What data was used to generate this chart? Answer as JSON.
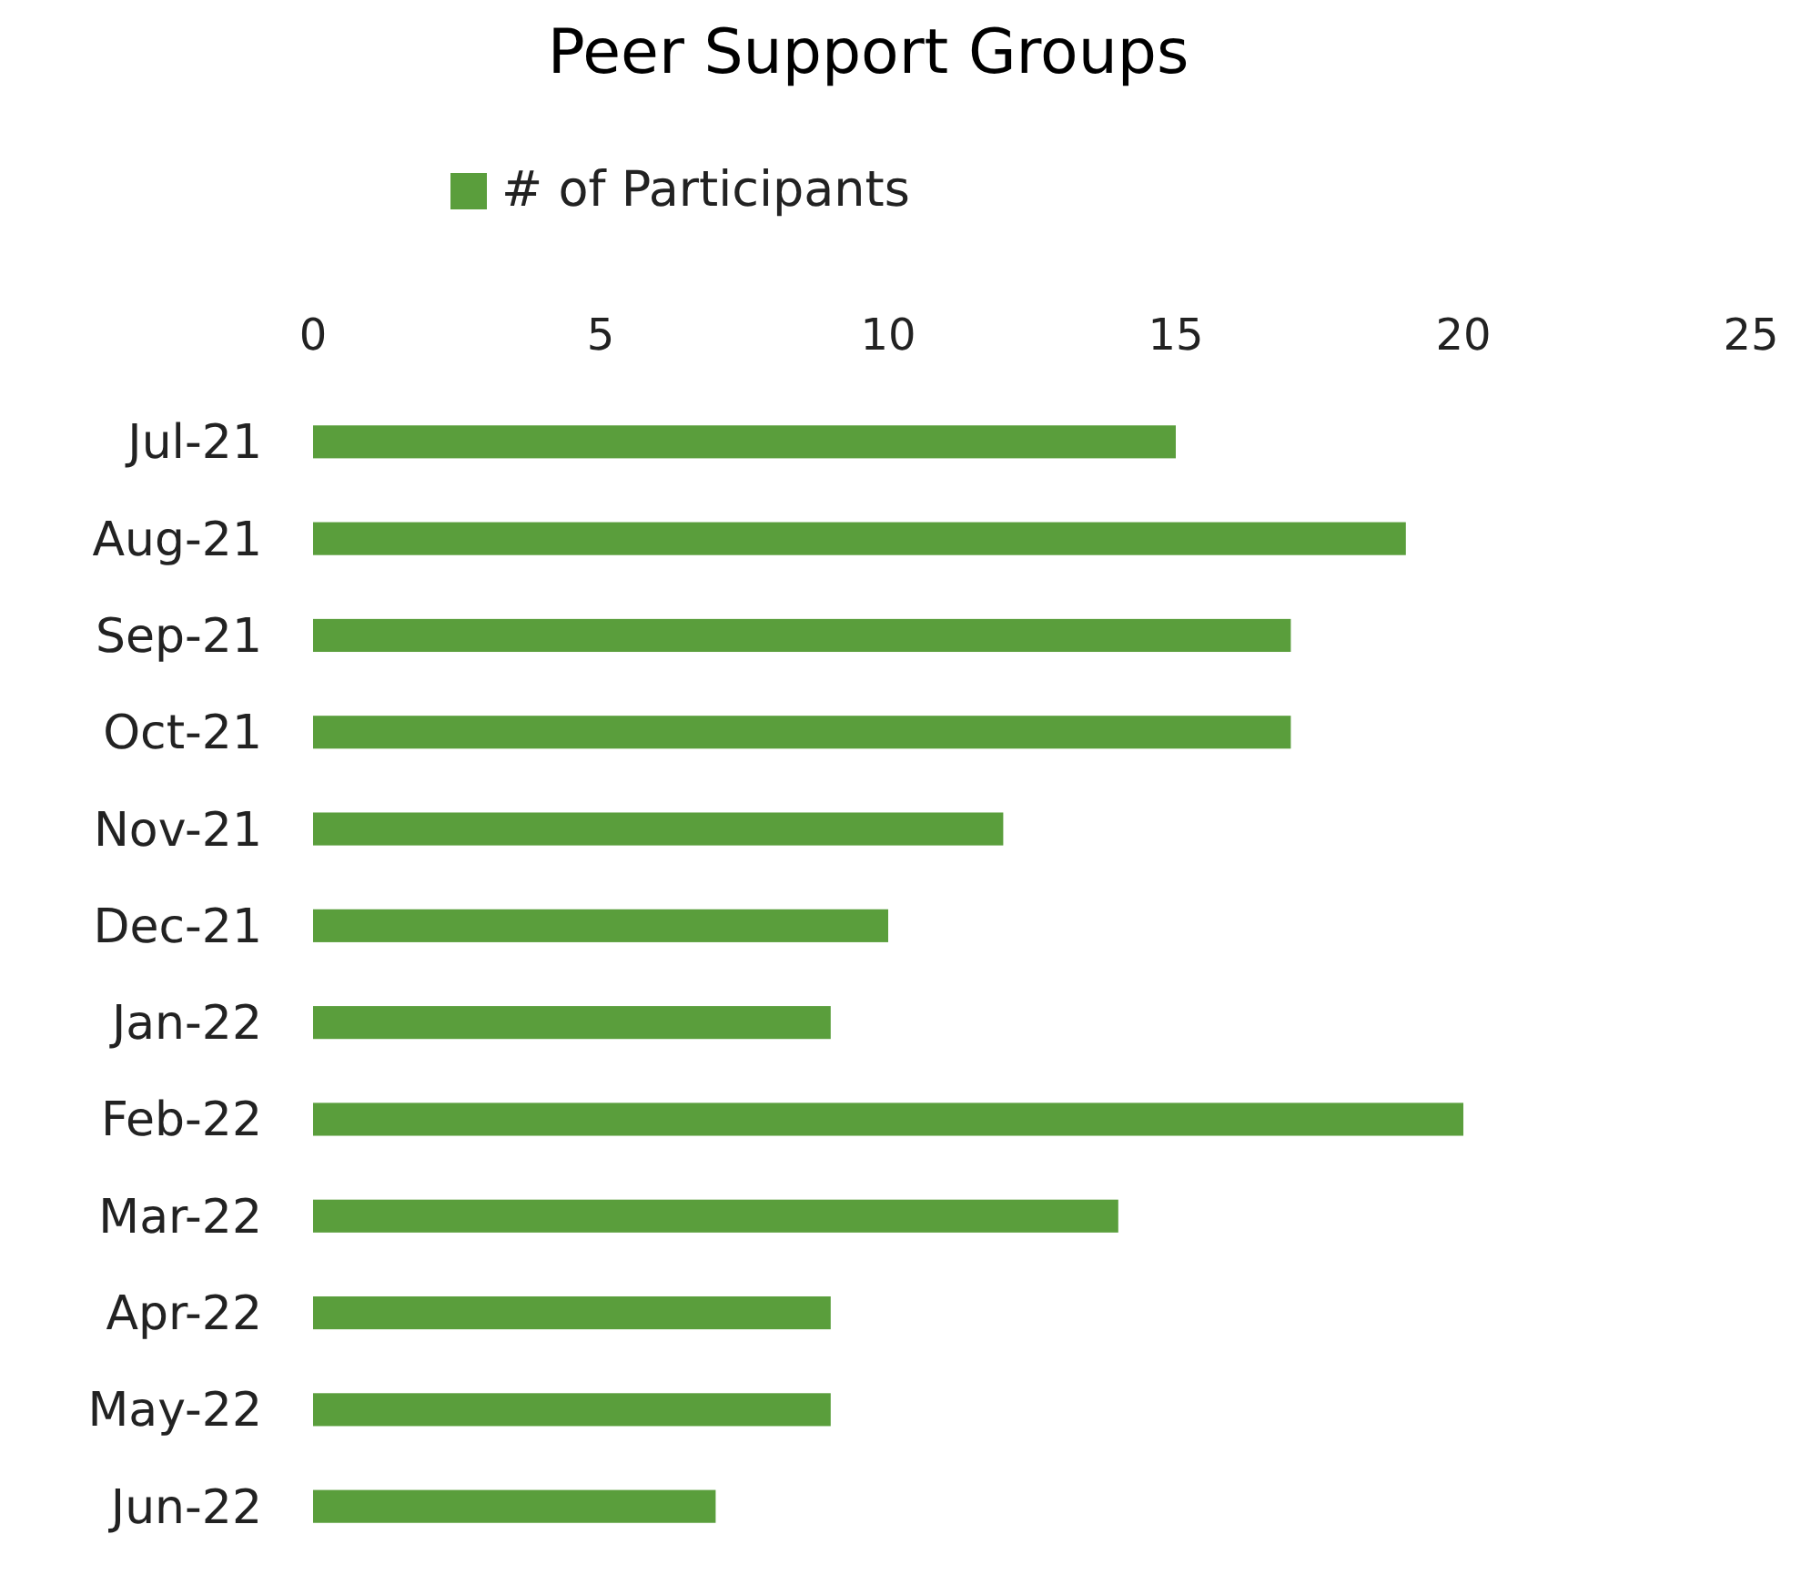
{
  "chart_data": {
    "type": "bar",
    "orientation": "horizontal",
    "title": "Peer Support Groups",
    "categories": [
      "Jul-21",
      "Aug-21",
      "Sep-21",
      "Oct-21",
      "Nov-21",
      "Dec-21",
      "Jan-22",
      "Feb-22",
      "Mar-22",
      "Apr-22",
      "May-22",
      "Jun-22"
    ],
    "series": [
      {
        "name": "# of Participants",
        "color": "#5a9e3c",
        "values": [
          15,
          19,
          17,
          17,
          12,
          10,
          9,
          20,
          14,
          9,
          9,
          7
        ]
      }
    ],
    "xlim": [
      0,
      25
    ],
    "xticks": [
      0,
      5,
      10,
      15,
      20,
      25
    ],
    "grid": false,
    "legend": "top"
  }
}
